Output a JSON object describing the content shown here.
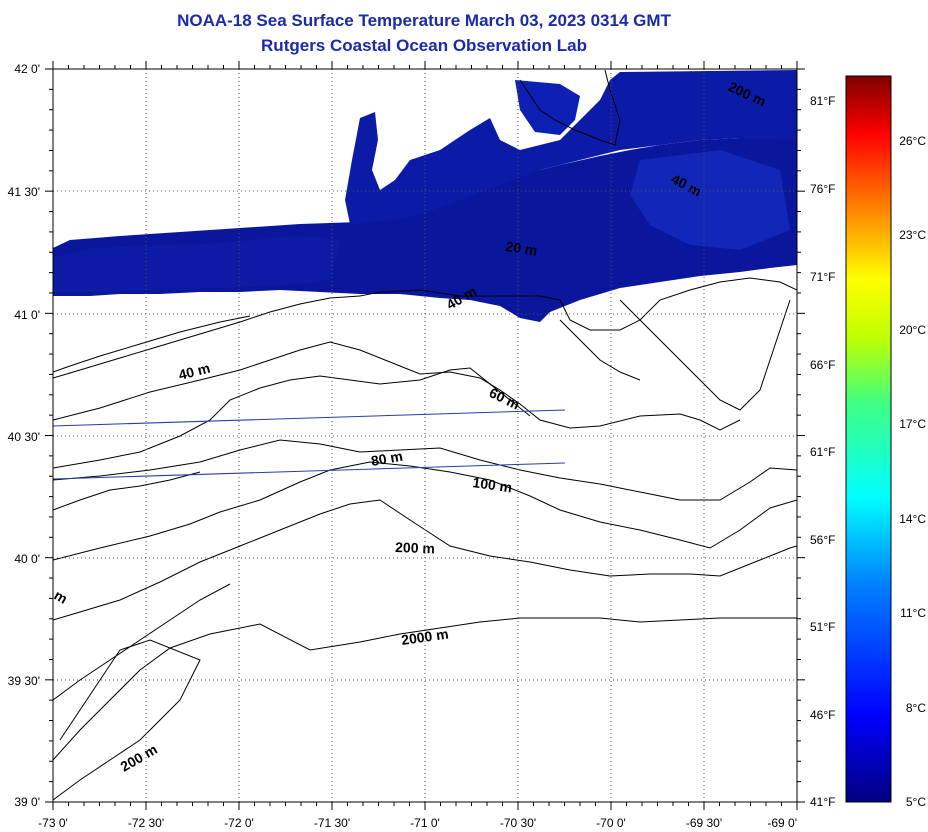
{
  "title": "NOAA-18 Sea Surface Temperature March 03, 2023 0314 GMT",
  "subtitle": "Rutgers Coastal Ocean Observation Lab",
  "lon_ticks": [
    "-73 0'",
    "-72 30'",
    "-72 0'",
    "-71 30'",
    "-71 0'",
    "-70 30'",
    "-70 0'",
    "-69 30'",
    "-69 0'"
  ],
  "lat_ticks": [
    "42 0'",
    "41 30'",
    "41 0'",
    "40 30'",
    "40 0'",
    "39 30'",
    "39 0'"
  ],
  "contours": [
    {
      "label": "200 m"
    },
    {
      "label": "40 m"
    },
    {
      "label": "20 m"
    },
    {
      "label": "40 m"
    },
    {
      "label": "40 m"
    },
    {
      "label": "60 m"
    },
    {
      "label": "80 m"
    },
    {
      "label": "100 m"
    },
    {
      "label": "200 m"
    },
    {
      "label": "2000 m"
    },
    {
      "label": "200 m"
    },
    {
      "label": "m"
    }
  ],
  "fahrenheit_labels": [
    "81°F",
    "76°F",
    "71°F",
    "66°F",
    "61°F",
    "56°F",
    "51°F",
    "46°F",
    "41°F"
  ],
  "celsius_labels": [
    "26°C",
    "23°C",
    "20°C",
    "17°C",
    "14°C",
    "11°C",
    "8°C",
    "5°C"
  ],
  "colors": {
    "title": "#1a2aa8",
    "sst_cold": "#0a1496",
    "sst_mid": "#1428b4"
  }
}
